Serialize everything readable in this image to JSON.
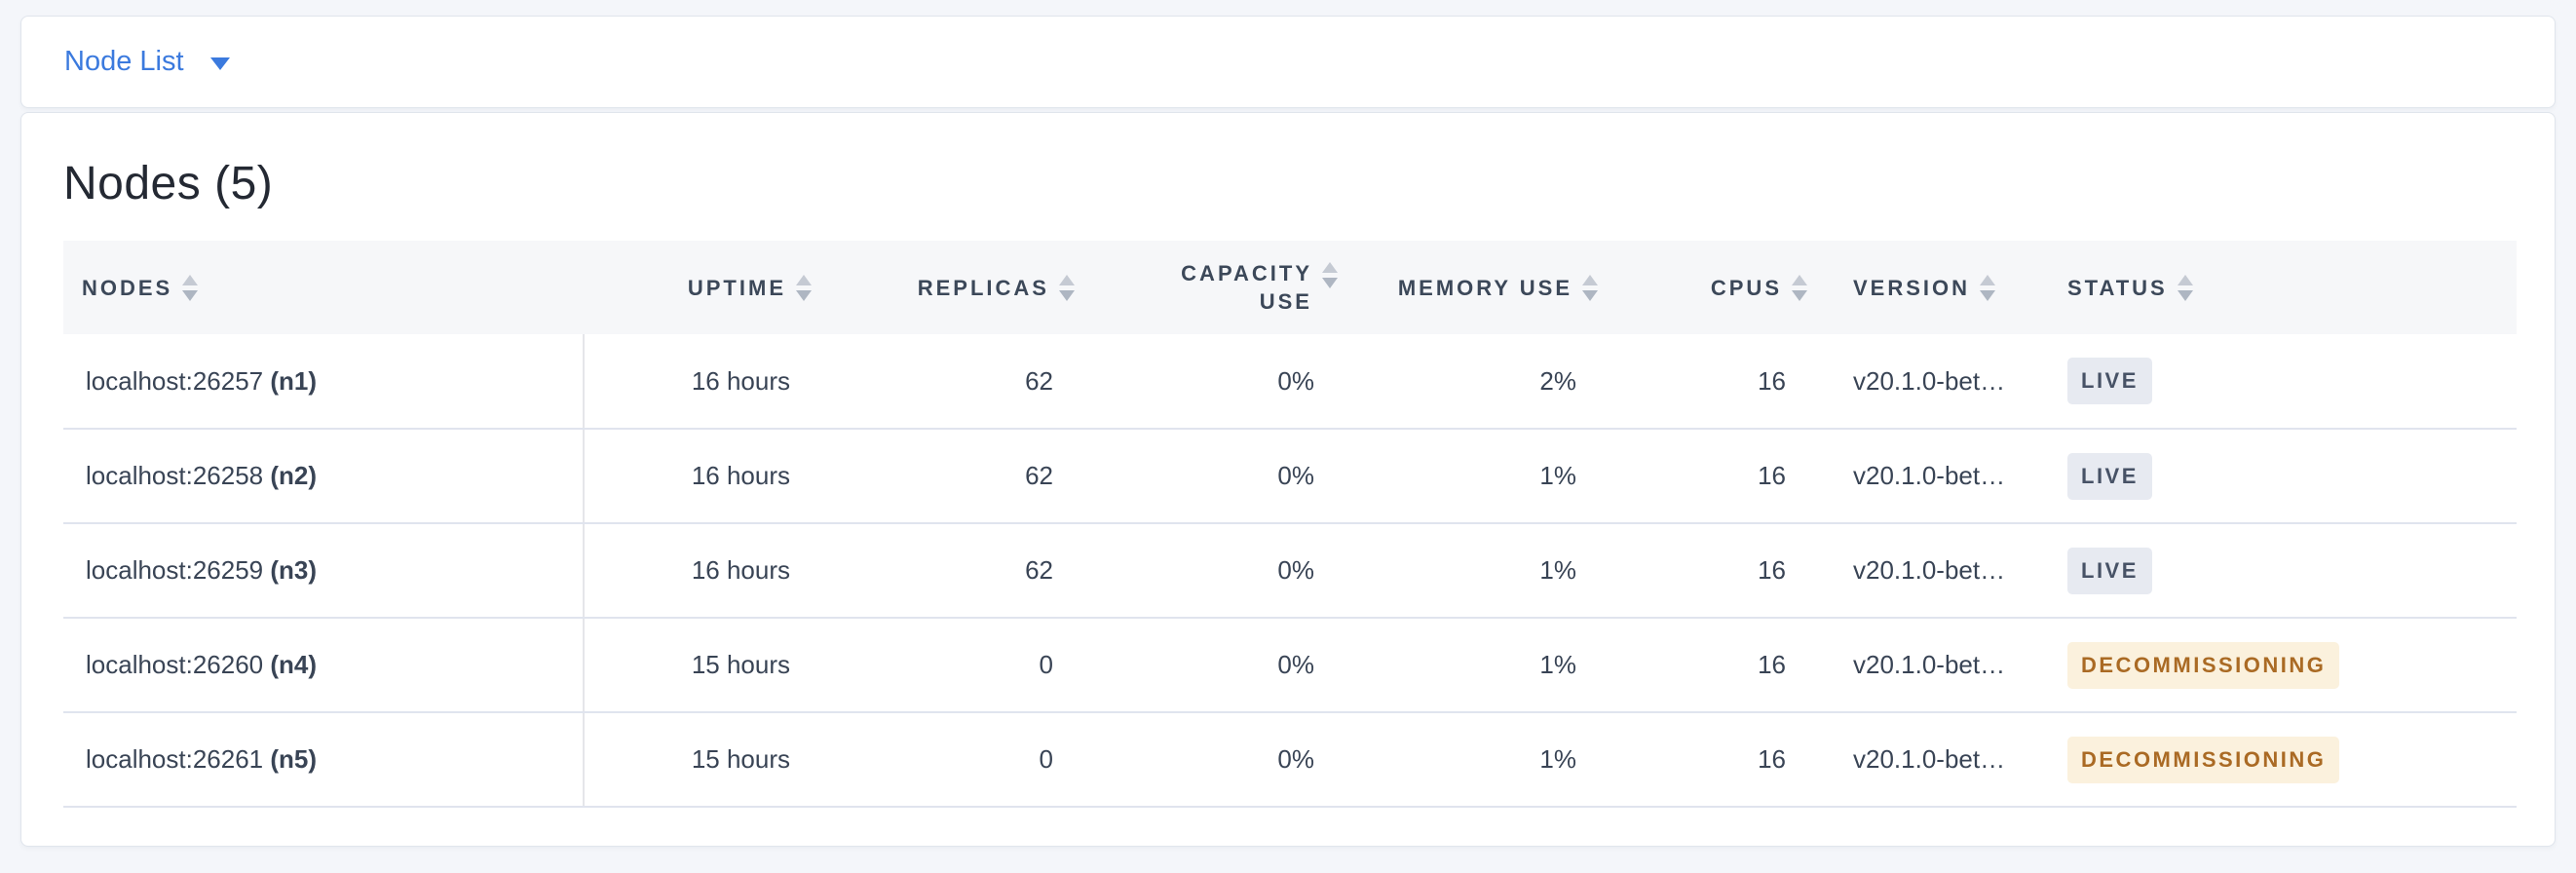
{
  "selector": {
    "label": "Node List"
  },
  "main": {
    "heading": "Nodes (5)"
  },
  "table": {
    "columns": [
      {
        "key": "node",
        "label": "NODES",
        "align": "left"
      },
      {
        "key": "uptime",
        "label": "UPTIME",
        "align": "right"
      },
      {
        "key": "replicas",
        "label": "REPLICAS",
        "align": "right"
      },
      {
        "key": "capacity",
        "label": "CAPACITY USE",
        "align": "right",
        "wrap": true
      },
      {
        "key": "memory",
        "label": "MEMORY USE",
        "align": "right"
      },
      {
        "key": "cpus",
        "label": "CPUS",
        "align": "right"
      },
      {
        "key": "version",
        "label": "VERSION",
        "align": "left"
      },
      {
        "key": "status",
        "label": "STATUS",
        "align": "left"
      }
    ],
    "rows": [
      {
        "node": "localhost:26257",
        "node_id": "(n1)",
        "uptime": "16 hours",
        "replicas": "62",
        "capacity": "0%",
        "memory": "2%",
        "cpus": "16",
        "version": "v20.1.0-bet…",
        "status": "LIVE"
      },
      {
        "node": "localhost:26258",
        "node_id": "(n2)",
        "uptime": "16 hours",
        "replicas": "62",
        "capacity": "0%",
        "memory": "1%",
        "cpus": "16",
        "version": "v20.1.0-bet…",
        "status": "LIVE"
      },
      {
        "node": "localhost:26259",
        "node_id": "(n3)",
        "uptime": "16 hours",
        "replicas": "62",
        "capacity": "0%",
        "memory": "1%",
        "cpus": "16",
        "version": "v20.1.0-bet…",
        "status": "LIVE"
      },
      {
        "node": "localhost:26260",
        "node_id": "(n4)",
        "uptime": "15 hours",
        "replicas": "0",
        "capacity": "0%",
        "memory": "1%",
        "cpus": "16",
        "version": "v20.1.0-bet…",
        "status": "DECOMMISSIONING"
      },
      {
        "node": "localhost:26261",
        "node_id": "(n5)",
        "uptime": "15 hours",
        "replicas": "0",
        "capacity": "0%",
        "memory": "1%",
        "cpus": "16",
        "version": "v20.1.0-bet…",
        "status": "DECOMMISSIONING"
      }
    ]
  },
  "icons": {
    "dropdown_caret": "caret-down-icon",
    "column_sort": "sort-arrows-icon"
  },
  "colors": {
    "page_bg": "#f4f6fa",
    "accent_blue": "#3b7ade",
    "heading_text": "#242933",
    "header_text": "#3c4859",
    "cell_text": "#394455",
    "header_bg": "#f6f7f9",
    "row_border": "#e0e4ee",
    "badge_live_bg": "#e7eaf1",
    "badge_live_text": "#475266",
    "badge_decommissioning_bg": "#fbf1dd",
    "badge_decommissioning_text": "#aa6a24"
  }
}
